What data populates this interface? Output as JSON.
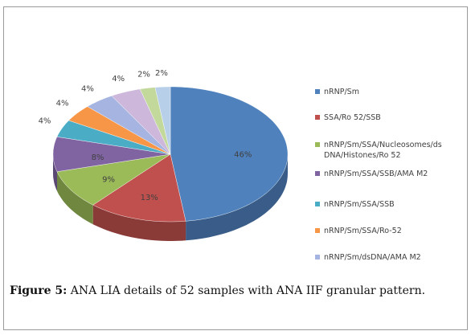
{
  "chart_data": {
    "type": "pie3d",
    "categories": [
      "nRNP/Sm",
      "SSA/Ro 52/SSB",
      "nRNP/Sm/SSA/Nucleosomes/dsDNA/Histones/Ro 52",
      "nRNP/Sm/SSA/SSB/AMA M2",
      "nRNP/Sm/SSA/SSB",
      "nRNP/Sm/SSA/Ro-52",
      "nRNP/Sm/dsDNA/AMA M2",
      null,
      null,
      null
    ],
    "values": [
      46,
      13,
      9,
      8,
      4,
      4,
      4,
      4,
      2,
      2
    ],
    "value_labels": [
      "46%",
      "13%",
      "9%",
      "8%",
      "4%",
      "4%",
      "4%",
      "4%",
      "2%",
      "2%"
    ],
    "colors": [
      "#4f81bd",
      "#c0504d",
      "#9bbb59",
      "#8064a2",
      "#4bacc6",
      "#f79646",
      "#a5b4e0",
      "#cdb8dc",
      "#c3d89b",
      "#b7cfe8"
    ],
    "legend": "right",
    "caption_label": "Figure 5:",
    "caption": "ANA LIA details of 52 samples with ANA IIF granular pattern."
  }
}
